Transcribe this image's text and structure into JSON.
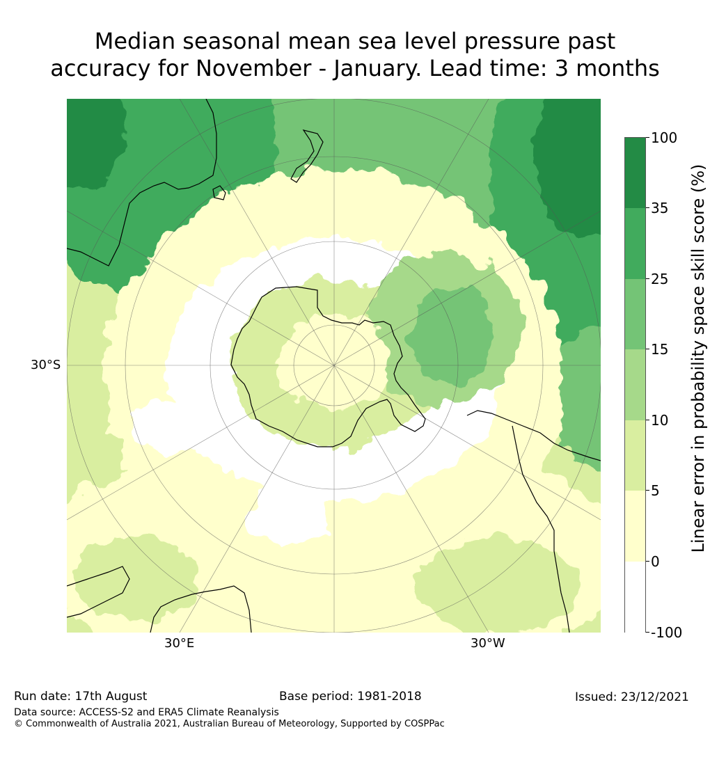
{
  "title": {
    "line1": "Median seasonal mean sea level pressure past",
    "line2": "accuracy for November - January. Lead time: 3 months"
  },
  "map": {
    "projection": "south-polar-stereographic",
    "lat_label": "30°S",
    "lon_labels": {
      "east": "30°E",
      "west": "30°W"
    }
  },
  "colorbar": {
    "label": "Linear error in probability space skill score (%)",
    "ticks": [
      "100",
      "35",
      "25",
      "15",
      "10",
      "5",
      "0",
      "-100"
    ],
    "bins": [
      {
        "range": "35-100",
        "color": "#238b45"
      },
      {
        "range": "25-35",
        "color": "#41ab5d"
      },
      {
        "range": "15-25",
        "color": "#74c476"
      },
      {
        "range": "10-15",
        "color": "#a6d98a"
      },
      {
        "range": "5-10",
        "color": "#d9eea0"
      },
      {
        "range": "0-5",
        "color": "#ffffcc"
      },
      {
        "range": "-100-0",
        "color": "#ffffff"
      }
    ]
  },
  "footer": {
    "run_date": "Run date: 17th August",
    "base_period": "Base period: 1981-2018",
    "issued": "Issued: 23/12/2021",
    "data_source": "Data source: ACCESS-S2 and ERA5 Climate Reanalysis",
    "copyright": "© Commonwealth of Australia 2021, Australian Bureau of Meteorology, Supported by COSPPac"
  }
}
